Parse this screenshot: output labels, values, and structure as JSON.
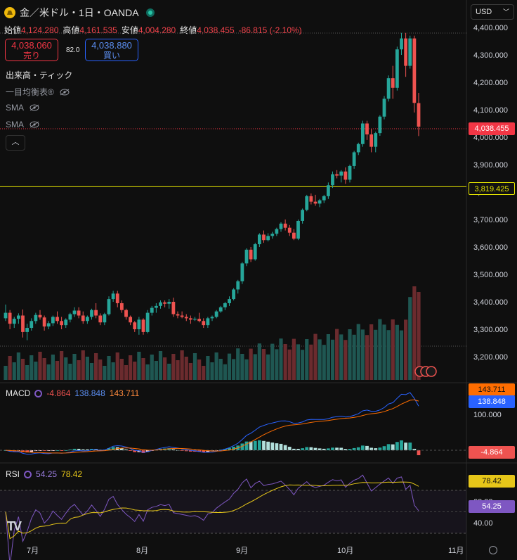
{
  "header": {
    "symbol": "金／米ドル・1日・OANDA"
  },
  "ohlc": {
    "open_label": "始値",
    "open": "4,124.280",
    "high_label": "高値",
    "high": "4,161.535",
    "low_label": "安値",
    "low": "4,004.280",
    "close_label": "終値",
    "close": "4,038.455",
    "change": "-86.815 (-2.10%)"
  },
  "trade": {
    "sell_price": "4,038.060",
    "sell_label": "売り",
    "spread": "82.0",
    "buy_price": "4,038.880",
    "buy_label": "買い"
  },
  "indicators": {
    "volume": "出来高・ティック",
    "ichimoku": "一目均衡表®",
    "sma1": "SMA",
    "sma2": "SMA"
  },
  "currency": "USD",
  "price_axis": {
    "ticks": [
      "4,400.000",
      "4,300.000",
      "4,200.000",
      "4,100.000",
      "4,000.000",
      "3,900.000",
      "3,800.000",
      "3,700.000",
      "3,600.000",
      "3,500.000",
      "3,400.000",
      "3,300.000",
      "3,200.000"
    ],
    "last_price": "4,038.455",
    "hline_price": "3,819.425"
  },
  "macd": {
    "label": "MACD",
    "hist": "-4.864",
    "macd": "138.848",
    "signal": "143.711",
    "axis_tick": "100.000"
  },
  "rsi": {
    "label": "RSI",
    "rsi": "54.25",
    "ma": "78.42",
    "axis_ticks": [
      "60.00",
      "40.00"
    ]
  },
  "time_axis": {
    "months": [
      "7月",
      "8月",
      "9月",
      "10月",
      "11月"
    ]
  },
  "colors": {
    "up": "#26a69a",
    "down": "#ef5350",
    "macd": "#2962ff",
    "signal": "#ff6d00",
    "rsi": "#7e57c2",
    "rsi_ma": "#e6c619",
    "hline": "#e6e600"
  },
  "chart_data": {
    "type": "candlestick",
    "x_start": "2025-06-25",
    "ohlc": [
      [
        3340,
        3390,
        3330,
        3360
      ],
      [
        3360,
        3370,
        3300,
        3320
      ],
      [
        3320,
        3345,
        3305,
        3338
      ],
      [
        3338,
        3358,
        3320,
        3350
      ],
      [
        3350,
        3372,
        3270,
        3290
      ],
      [
        3290,
        3320,
        3260,
        3305
      ],
      [
        3305,
        3340,
        3295,
        3330
      ],
      [
        3330,
        3360,
        3320,
        3352
      ],
      [
        3352,
        3370,
        3335,
        3343
      ],
      [
        3343,
        3350,
        3295,
        3310
      ],
      [
        3310,
        3330,
        3300,
        3322
      ],
      [
        3322,
        3350,
        3312,
        3345
      ],
      [
        3345,
        3365,
        3320,
        3330
      ],
      [
        3330,
        3345,
        3300,
        3315
      ],
      [
        3315,
        3340,
        3305,
        3335
      ],
      [
        3335,
        3360,
        3325,
        3355
      ],
      [
        3355,
        3380,
        3345,
        3368
      ],
      [
        3368,
        3380,
        3340,
        3350
      ],
      [
        3350,
        3365,
        3320,
        3330
      ],
      [
        3330,
        3350,
        3320,
        3345
      ],
      [
        3345,
        3375,
        3335,
        3370
      ],
      [
        3370,
        3395,
        3340,
        3350
      ],
      [
        3350,
        3358,
        3315,
        3325
      ],
      [
        3325,
        3360,
        3315,
        3355
      ],
      [
        3355,
        3420,
        3350,
        3410
      ],
      [
        3410,
        3440,
        3400,
        3430
      ],
      [
        3430,
        3440,
        3380,
        3395
      ],
      [
        3395,
        3405,
        3360,
        3370
      ],
      [
        3370,
        3375,
        3335,
        3345
      ],
      [
        3345,
        3350,
        3315,
        3325
      ],
      [
        3325,
        3330,
        3290,
        3300
      ],
      [
        3300,
        3345,
        3280,
        3335
      ],
      [
        3335,
        3340,
        3280,
        3290
      ],
      [
        3290,
        3370,
        3285,
        3360
      ],
      [
        3360,
        3385,
        3350,
        3378
      ],
      [
        3378,
        3395,
        3360,
        3385
      ],
      [
        3385,
        3405,
        3375,
        3398
      ],
      [
        3398,
        3405,
        3380,
        3393
      ],
      [
        3393,
        3410,
        3375,
        3400
      ],
      [
        3400,
        3415,
        3345,
        3355
      ],
      [
        3355,
        3365,
        3340,
        3350
      ],
      [
        3350,
        3365,
        3340,
        3345
      ],
      [
        3345,
        3355,
        3330,
        3340
      ],
      [
        3340,
        3350,
        3320,
        3335
      ],
      [
        3335,
        3345,
        3330,
        3338
      ],
      [
        3338,
        3360,
        3325,
        3330
      ],
      [
        3330,
        3340,
        3305,
        3315
      ],
      [
        3315,
        3345,
        3305,
        3340
      ],
      [
        3340,
        3350,
        3330,
        3345
      ],
      [
        3345,
        3370,
        3340,
        3365
      ],
      [
        3365,
        3385,
        3360,
        3380
      ],
      [
        3380,
        3400,
        3370,
        3395
      ],
      [
        3395,
        3420,
        3385,
        3410
      ],
      [
        3410,
        3450,
        3405,
        3445
      ],
      [
        3445,
        3480,
        3430,
        3475
      ],
      [
        3475,
        3545,
        3465,
        3540
      ],
      [
        3540,
        3595,
        3530,
        3590
      ],
      [
        3590,
        3600,
        3545,
        3555
      ],
      [
        3555,
        3615,
        3550,
        3610
      ],
      [
        3610,
        3650,
        3600,
        3645
      ],
      [
        3645,
        3660,
        3615,
        3625
      ],
      [
        3625,
        3650,
        3620,
        3640
      ],
      [
        3640,
        3655,
        3630,
        3648
      ],
      [
        3648,
        3670,
        3640,
        3665
      ],
      [
        3665,
        3690,
        3655,
        3685
      ],
      [
        3685,
        3700,
        3660,
        3670
      ],
      [
        3670,
        3680,
        3640,
        3652
      ],
      [
        3652,
        3665,
        3625,
        3630
      ],
      [
        3630,
        3700,
        3625,
        3695
      ],
      [
        3695,
        3740,
        3685,
        3735
      ],
      [
        3735,
        3790,
        3730,
        3785
      ],
      [
        3785,
        3795,
        3755,
        3765
      ],
      [
        3765,
        3790,
        3750,
        3758
      ],
      [
        3758,
        3775,
        3745,
        3770
      ],
      [
        3770,
        3790,
        3760,
        3785
      ],
      [
        3785,
        3835,
        3775,
        3825
      ],
      [
        3825,
        3875,
        3815,
        3865
      ],
      [
        3865,
        3880,
        3850,
        3860
      ],
      [
        3860,
        3880,
        3835,
        3875
      ],
      [
        3875,
        3890,
        3830,
        3845
      ],
      [
        3845,
        3900,
        3835,
        3895
      ],
      [
        3895,
        3950,
        3885,
        3945
      ],
      [
        3945,
        3980,
        3935,
        3975
      ],
      [
        3975,
        4060,
        3965,
        4050
      ],
      [
        4050,
        4060,
        3990,
        4010
      ],
      [
        4010,
        4030,
        3945,
        3965
      ],
      [
        3965,
        4020,
        3945,
        4015
      ],
      [
        4015,
        4080,
        4005,
        4075
      ],
      [
        4075,
        4150,
        4065,
        4140
      ],
      [
        4140,
        4225,
        4130,
        4215
      ],
      [
        4215,
        4260,
        4140,
        4180
      ],
      [
        4180,
        4330,
        4170,
        4320
      ],
      [
        4320,
        4380,
        4300,
        4360
      ],
      [
        4360,
        4380,
        4220,
        4260
      ],
      [
        4260,
        4370,
        4250,
        4360
      ],
      [
        4360,
        4370,
        4090,
        4125
      ],
      [
        4124.28,
        4161.535,
        4004.28,
        4038.455
      ]
    ]
  }
}
